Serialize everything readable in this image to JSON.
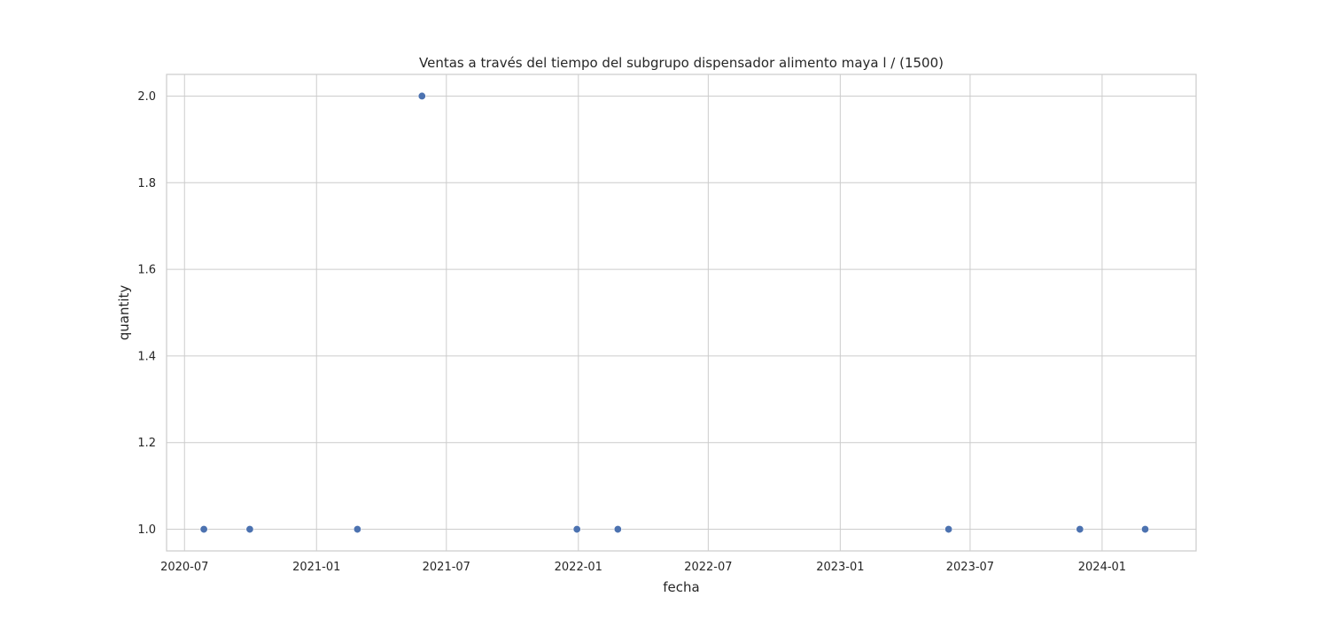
{
  "chart_data": {
    "type": "scatter",
    "title": "Ventas a través del tiempo del subgrupo dispensador alimento maya l / (1500)",
    "xlabel": "fecha",
    "ylabel": "quantity",
    "x_type": "date",
    "xlim": [
      "2020-06-06",
      "2024-05-11"
    ],
    "ylim": [
      0.95,
      2.05
    ],
    "x_ticks": [
      "2020-07-01",
      "2021-01-01",
      "2021-07-01",
      "2022-01-01",
      "2022-07-01",
      "2023-01-01",
      "2023-07-01",
      "2024-01-01"
    ],
    "x_tick_labels": [
      "2020-07",
      "2021-01",
      "2021-07",
      "2022-01",
      "2022-07",
      "2023-01",
      "2023-07",
      "2024-01"
    ],
    "y_ticks": [
      1.0,
      1.2,
      1.4,
      1.6,
      1.8,
      2.0
    ],
    "y_tick_labels": [
      "1.0",
      "1.2",
      "1.4",
      "1.6",
      "1.8",
      "2.0"
    ],
    "grid": true,
    "color": "#4c72b0",
    "points": [
      {
        "x": "2020-07-28",
        "y": 1
      },
      {
        "x": "2020-09-30",
        "y": 1
      },
      {
        "x": "2021-02-27",
        "y": 1
      },
      {
        "x": "2021-05-28",
        "y": 2
      },
      {
        "x": "2021-12-30",
        "y": 1
      },
      {
        "x": "2022-02-25",
        "y": 1
      },
      {
        "x": "2023-06-01",
        "y": 1
      },
      {
        "x": "2023-12-01",
        "y": 1
      },
      {
        "x": "2024-03-01",
        "y": 1
      }
    ]
  }
}
